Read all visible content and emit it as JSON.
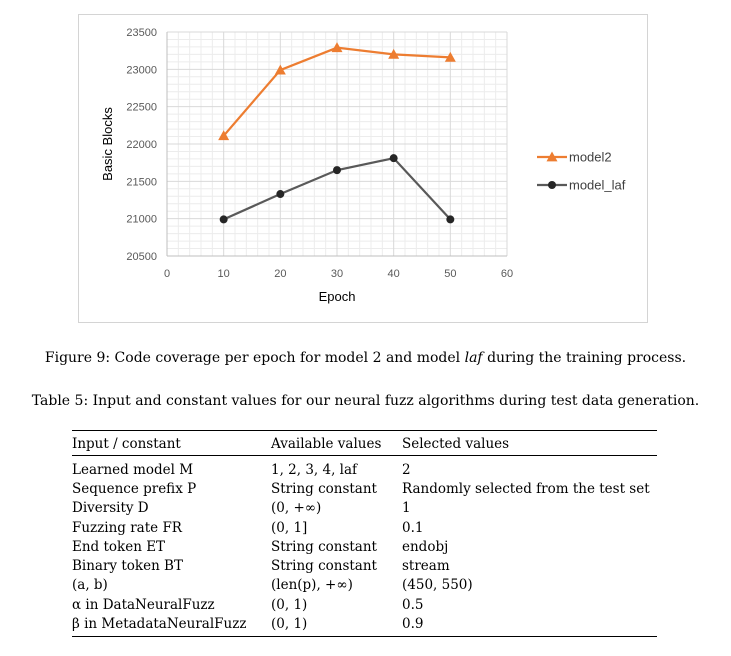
{
  "chart_data": {
    "type": "line",
    "xlabel": "Epoch",
    "ylabel": "Basic Blocks",
    "xlim": [
      0,
      60
    ],
    "ylim": [
      20500,
      23500
    ],
    "x_ticks": [
      "0",
      "10",
      "20",
      "30",
      "40",
      "50",
      "60"
    ],
    "y_ticks": [
      "20500",
      "21000",
      "21500",
      "22000",
      "22500",
      "23000",
      "23500"
    ],
    "x": [
      10,
      20,
      30,
      40,
      50
    ],
    "grid": true,
    "legend_position": "right",
    "series": [
      {
        "name": "model2",
        "values": [
          22110,
          22990,
          23290,
          23200,
          23160
        ],
        "color": "#ED7D31",
        "marker": "triangle"
      },
      {
        "name": "model_laf",
        "values": [
          20990,
          21330,
          21650,
          21810,
          20990
        ],
        "color": "#595959",
        "marker": "circle"
      }
    ]
  },
  "figure_caption": "Figure 9: Code coverage per epoch for model 2 and model laf during the training process.",
  "table_caption": "Table 5: Input and constant values for our neural fuzz algorithms during test data generation.",
  "table": {
    "headers": [
      "Input / constant",
      "Available values",
      "Selected values"
    ],
    "rows": [
      [
        "Learned model M",
        "1, 2, 3, 4, laf",
        "2"
      ],
      [
        "Sequence prefix P",
        "String constant",
        "Randomly selected from the test set"
      ],
      [
        "Diversity D",
        "(0, +∞)",
        "1"
      ],
      [
        "Fuzzing rate FR",
        "(0, 1]",
        "0.1"
      ],
      [
        "End token ET",
        "String constant",
        "endobj"
      ],
      [
        "Binary token BT",
        "String constant",
        "stream"
      ],
      [
        "(a, b)",
        "(len(p), +∞)",
        "(450, 550)"
      ],
      [
        "α in DataNeuralFuzz",
        "(0, 1)",
        "0.5"
      ],
      [
        "β in MetadataNeuralFuzz",
        "(0, 1)",
        "0.9"
      ]
    ]
  }
}
